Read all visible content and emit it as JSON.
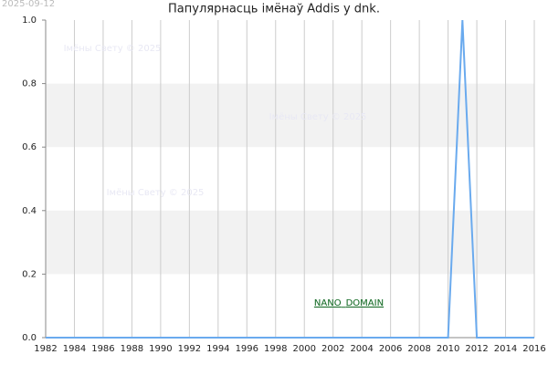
{
  "chart_data": {
    "type": "line",
    "title": "Папулярнасць імёнаў Addis у dnk.",
    "date": "2025-09-12",
    "watermarks": [
      "Імёны Свету © 2025",
      "Імёны Свету © 2025",
      "Імёны Свету © 2025"
    ],
    "domain_label": "NANO_DOMAIN",
    "x": [
      1982,
      1983,
      1984,
      1985,
      1986,
      1987,
      1988,
      1989,
      1990,
      1991,
      1992,
      1993,
      1994,
      1995,
      1996,
      1997,
      1998,
      1999,
      2000,
      2001,
      2002,
      2003,
      2004,
      2005,
      2006,
      2007,
      2008,
      2009,
      2010,
      2011,
      2012,
      2013,
      2014,
      2015,
      2016
    ],
    "values": [
      0,
      0,
      0,
      0,
      0,
      0,
      0,
      0,
      0,
      0,
      0,
      0,
      0,
      0,
      0,
      0,
      0,
      0,
      0,
      0,
      0,
      0,
      0,
      0,
      0,
      0,
      0,
      0,
      0,
      1,
      0,
      0,
      0,
      0,
      0
    ],
    "color": "#6aaaee",
    "xlim": [
      1982,
      2016
    ],
    "xticks": [
      1982,
      1984,
      1986,
      1988,
      1990,
      1992,
      1994,
      1996,
      1998,
      2000,
      2002,
      2004,
      2006,
      2008,
      2010,
      2012,
      2014,
      2016
    ],
    "ylim": [
      0,
      1
    ],
    "yticks": [
      {
        "value": 0,
        "label": "0.0"
      },
      0.2,
      0.4,
      0.6,
      0.8,
      {
        "value": 1,
        "label": "1.0"
      }
    ],
    "grid": true
  }
}
